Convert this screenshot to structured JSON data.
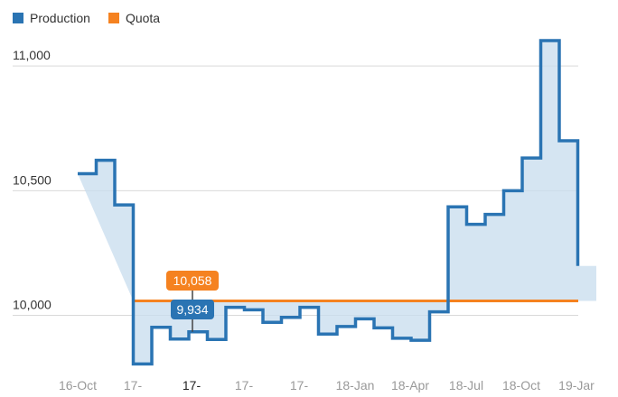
{
  "chart_data": {
    "type": "line",
    "step": true,
    "ylim": [
      9810,
      11120
    ],
    "y_ticks": [
      10000,
      10500,
      11000
    ],
    "y_tick_labels": [
      "10,000",
      "10,500",
      "11,000"
    ],
    "x_tick_labels": [
      "16-Oct",
      "17-",
      "17-",
      "17-",
      "17-",
      "18-Jan",
      "18-Apr",
      "18-Jul",
      "18-Oct",
      "19-Jar"
    ],
    "active_x_index": 2,
    "series": [
      {
        "name": "Production",
        "color": "#2a74b3",
        "values": [
          10568,
          10622,
          10443,
          9805,
          9952,
          9905,
          9934,
          9903,
          10032,
          10022,
          9972,
          9992,
          10032,
          9925,
          9955,
          9986,
          9950,
          9908,
          9900,
          10014,
          10435,
          10365,
          10405,
          10500,
          10631,
          11102,
          10700,
          10198
        ]
      },
      {
        "name": "Quota",
        "color": "#f58220",
        "values": [
          null,
          null,
          null,
          10058,
          10058,
          10058,
          10058,
          10058,
          10058,
          10058,
          10058,
          10058,
          10058,
          10058,
          10058,
          10058,
          10058,
          10058,
          10058,
          10058,
          10058,
          10058,
          10058,
          10058,
          10058,
          10058,
          10058,
          10058
        ]
      }
    ],
    "tooltip": {
      "index": 6,
      "quota_label": "10,058",
      "production_label": "9,934"
    }
  }
}
